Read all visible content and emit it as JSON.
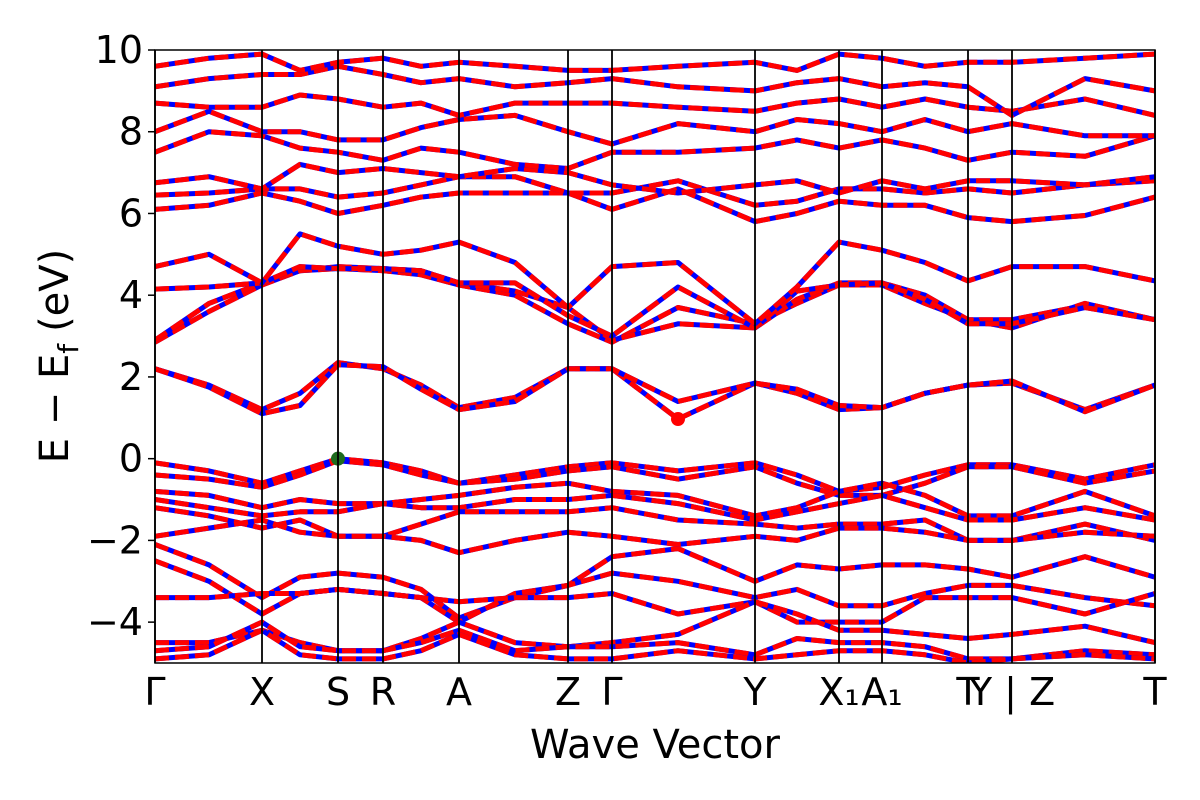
{
  "chart_data": {
    "type": "line",
    "xlabel": "Wave Vector",
    "ylabel": {
      "main": "E − E",
      "sub": "f",
      "unit": "(eV)"
    },
    "xlim": [
      0,
      1
    ],
    "ylim": [
      -5,
      10
    ],
    "yticks": [
      {
        "value": -4,
        "label": "−4"
      },
      {
        "value": -2,
        "label": "−2"
      },
      0,
      2,
      4,
      6,
      8,
      10
    ],
    "xticks": [
      {
        "value": 0,
        "label": "Γ"
      },
      {
        "value": 0.107,
        "label": "X"
      },
      {
        "value": 0.183,
        "label": "S"
      },
      {
        "value": 0.228,
        "label": "R"
      },
      {
        "value": 0.304,
        "label": "A"
      },
      {
        "value": 0.413,
        "label": "Z"
      },
      {
        "value": 0.457,
        "label": "Γ"
      },
      {
        "value": 0.6,
        "label": "Y"
      },
      {
        "value": 0.684,
        "label": "X₁"
      },
      {
        "value": 0.727,
        "label": "A₁"
      },
      {
        "value": 0.813,
        "label": "T"
      },
      {
        "value": 0.857,
        "label": "Y | Z"
      },
      {
        "value": 1,
        "label": "T"
      }
    ],
    "color": "#ff0000",
    "dash_color": "#0000ff",
    "x": [
      0,
      0.054,
      0.107,
      0.145,
      0.183,
      0.228,
      0.266,
      0.304,
      0.36,
      0.413,
      0.457,
      0.523,
      0.6,
      0.642,
      0.684,
      0.727,
      0.77,
      0.813,
      0.857,
      0.93,
      1.0
    ],
    "series": [
      {
        "values": [
          2.2,
          1.8,
          1.2,
          1.6,
          2.35,
          2.2,
          1.8,
          1.25,
          1.5,
          2.2,
          2.2,
          0.97,
          1.85,
          1.6,
          1.2,
          1.25,
          1.6,
          1.8,
          1.85,
          1.2,
          1.8
        ]
      },
      {
        "values": [
          2.2,
          1.75,
          1.1,
          1.3,
          2.3,
          2.25,
          1.7,
          1.2,
          1.4,
          2.2,
          2.2,
          1.4,
          1.85,
          1.7,
          1.3,
          1.25,
          1.6,
          1.8,
          1.9,
          1.15,
          1.8
        ]
      },
      {
        "values": [
          2.85,
          3.6,
          4.25,
          4.6,
          4.65,
          4.6,
          4.5,
          4.25,
          4.0,
          3.3,
          2.85,
          3.7,
          3.3,
          3.8,
          4.25,
          4.25,
          3.8,
          3.4,
          3.4,
          3.75,
          3.4
        ]
      },
      {
        "values": [
          2.9,
          3.8,
          4.3,
          4.6,
          4.7,
          4.65,
          4.6,
          4.3,
          4.1,
          3.7,
          2.9,
          3.3,
          3.2,
          3.9,
          4.3,
          4.3,
          4.0,
          3.4,
          3.2,
          3.8,
          3.4
        ]
      },
      {
        "values": [
          4.15,
          4.2,
          4.3,
          4.7,
          4.65,
          4.65,
          4.6,
          4.3,
          4.3,
          3.5,
          3.0,
          4.2,
          3.2,
          4.1,
          4.25,
          4.3,
          3.9,
          3.3,
          3.3,
          3.7,
          3.4
        ]
      },
      {
        "values": [
          4.7,
          5.0,
          4.3,
          5.5,
          5.2,
          5.0,
          5.1,
          5.3,
          4.8,
          3.7,
          4.7,
          4.8,
          3.3,
          4.2,
          5.3,
          5.1,
          4.8,
          4.35,
          4.7,
          4.7,
          4.35
        ]
      },
      {
        "values": [
          6.1,
          6.2,
          6.5,
          6.3,
          6.0,
          6.2,
          6.4,
          6.5,
          6.5,
          6.5,
          6.1,
          6.6,
          5.8,
          6.0,
          6.3,
          6.2,
          6.2,
          5.9,
          5.8,
          5.95,
          6.4
        ]
      },
      {
        "values": [
          6.45,
          6.5,
          6.6,
          6.6,
          6.4,
          6.5,
          6.7,
          6.9,
          6.9,
          6.5,
          6.5,
          6.8,
          6.2,
          6.3,
          6.6,
          6.6,
          6.5,
          6.6,
          6.5,
          6.7,
          6.8
        ]
      },
      {
        "values": [
          6.75,
          6.9,
          6.6,
          7.2,
          7.0,
          7.1,
          7.0,
          6.9,
          7.1,
          7.0,
          6.7,
          6.5,
          6.7,
          6.8,
          6.5,
          6.8,
          6.6,
          6.8,
          6.8,
          6.7,
          6.9
        ]
      },
      {
        "values": [
          7.5,
          8.0,
          7.9,
          7.6,
          7.5,
          7.3,
          7.6,
          7.5,
          7.2,
          7.1,
          7.5,
          7.5,
          7.6,
          7.8,
          7.6,
          7.8,
          7.6,
          7.3,
          7.5,
          7.4,
          7.9
        ]
      },
      {
        "values": [
          8.0,
          8.5,
          8.0,
          8.0,
          7.8,
          7.8,
          8.1,
          8.3,
          8.4,
          8.0,
          7.7,
          8.2,
          8.0,
          8.3,
          8.2,
          8.0,
          8.3,
          8.0,
          8.2,
          7.9,
          7.9
        ]
      },
      {
        "values": [
          8.7,
          8.6,
          8.6,
          8.9,
          8.8,
          8.6,
          8.7,
          8.4,
          8.7,
          8.7,
          8.7,
          8.6,
          8.5,
          8.7,
          8.8,
          8.6,
          8.8,
          8.6,
          8.5,
          8.8,
          8.4
        ]
      },
      {
        "values": [
          9.1,
          9.3,
          9.4,
          9.4,
          9.6,
          9.4,
          9.2,
          9.3,
          9.1,
          9.2,
          9.3,
          9.1,
          9.0,
          9.2,
          9.3,
          9.1,
          9.2,
          9.1,
          8.4,
          9.3,
          9.0
        ]
      },
      {
        "values": [
          9.6,
          9.8,
          9.9,
          9.5,
          9.7,
          9.8,
          9.6,
          9.7,
          9.6,
          9.5,
          9.5,
          9.6,
          9.7,
          9.5,
          9.9,
          9.8,
          9.6,
          9.7,
          9.7,
          9.8,
          9.9
        ]
      },
      {
        "values": [
          -0.1,
          -0.3,
          -0.6,
          -0.3,
          0.0,
          -0.1,
          -0.3,
          -0.6,
          -0.4,
          -0.2,
          -0.1,
          -0.3,
          -0.1,
          -0.4,
          -0.8,
          -0.7,
          -0.4,
          -0.15,
          -0.15,
          -0.5,
          -0.15
        ]
      },
      {
        "values": [
          -0.4,
          -0.5,
          -0.7,
          -0.4,
          -0.05,
          -0.15,
          -0.4,
          -0.6,
          -0.5,
          -0.3,
          -0.2,
          -0.5,
          -0.2,
          -0.6,
          -0.9,
          -0.9,
          -0.6,
          -0.2,
          -0.2,
          -0.6,
          -0.3
        ]
      },
      {
        "values": [
          -0.8,
          -0.9,
          -1.2,
          -1.0,
          -1.1,
          -1.1,
          -1.0,
          -0.9,
          -0.7,
          -0.6,
          -0.8,
          -0.9,
          -1.4,
          -1.2,
          -0.8,
          -0.6,
          -0.9,
          -1.4,
          -1.4,
          -0.8,
          -1.4
        ]
      },
      {
        "values": [
          -1.0,
          -1.2,
          -1.4,
          -1.3,
          -1.3,
          -1.1,
          -1.2,
          -1.2,
          -1.0,
          -1.0,
          -0.9,
          -1.1,
          -1.5,
          -1.3,
          -1.1,
          -0.9,
          -1.2,
          -1.5,
          -1.5,
          -1.2,
          -1.5
        ]
      },
      {
        "values": [
          -1.2,
          -1.4,
          -1.7,
          -1.5,
          -1.9,
          -1.9,
          -1.6,
          -1.3,
          -1.3,
          -1.3,
          -1.2,
          -1.5,
          -1.6,
          -1.7,
          -1.6,
          -1.6,
          -1.5,
          -2.0,
          -2.0,
          -1.6,
          -2.0
        ]
      },
      {
        "values": [
          -1.9,
          -1.7,
          -1.5,
          -1.8,
          -1.9,
          -1.9,
          -2.0,
          -2.3,
          -2.0,
          -1.8,
          -1.9,
          -2.1,
          -1.9,
          -2.0,
          -1.7,
          -1.7,
          -1.8,
          -2.0,
          -2.0,
          -1.8,
          -1.9
        ]
      },
      {
        "values": [
          -2.1,
          -2.6,
          -3.4,
          -2.9,
          -2.8,
          -2.9,
          -3.2,
          -3.9,
          -3.4,
          -3.1,
          -2.4,
          -2.2,
          -3.0,
          -2.6,
          -2.7,
          -2.6,
          -2.6,
          -2.7,
          -2.9,
          -2.4,
          -2.9
        ]
      },
      {
        "values": [
          -2.5,
          -3.0,
          -3.8,
          -3.3,
          -3.2,
          -3.3,
          -3.4,
          -4.0,
          -3.3,
          -3.1,
          -2.8,
          -3.0,
          -3.4,
          -3.2,
          -3.6,
          -3.6,
          -3.3,
          -3.1,
          -3.1,
          -3.4,
          -3.6
        ]
      },
      {
        "values": [
          -3.4,
          -3.4,
          -3.3,
          -3.3,
          -3.2,
          -3.3,
          -3.4,
          -3.5,
          -3.4,
          -3.4,
          -3.3,
          -3.8,
          -3.5,
          -4.0,
          -4.0,
          -4.0,
          -3.4,
          -3.4,
          -3.4,
          -3.8,
          -3.3
        ]
      },
      {
        "values": [
          -4.5,
          -4.5,
          -4.2,
          -4.5,
          -4.7,
          -4.7,
          -4.4,
          -4.0,
          -4.5,
          -4.6,
          -4.5,
          -4.3,
          -3.5,
          -3.8,
          -4.2,
          -4.2,
          -4.3,
          -4.4,
          -4.3,
          -4.1,
          -4.5
        ]
      },
      {
        "values": [
          -4.7,
          -4.6,
          -4.0,
          -4.6,
          -4.7,
          -4.7,
          -4.5,
          -4.2,
          -4.7,
          -4.6,
          -4.6,
          -4.5,
          -4.8,
          -4.4,
          -4.5,
          -4.5,
          -4.6,
          -4.9,
          -4.9,
          -4.7,
          -4.8
        ]
      },
      {
        "values": [
          -4.9,
          -4.8,
          -4.2,
          -4.8,
          -4.9,
          -4.9,
          -4.7,
          -4.3,
          -4.8,
          -4.9,
          -4.9,
          -4.7,
          -4.9,
          -4.8,
          -4.7,
          -4.7,
          -4.8,
          -5.0,
          -4.9,
          -4.8,
          -4.9
        ]
      }
    ],
    "points": [
      {
        "x": 0.183,
        "y": 0,
        "color": "#1e6b1e"
      },
      {
        "x": 0.523,
        "y": 0.97,
        "color": "#ff0000"
      }
    ]
  }
}
